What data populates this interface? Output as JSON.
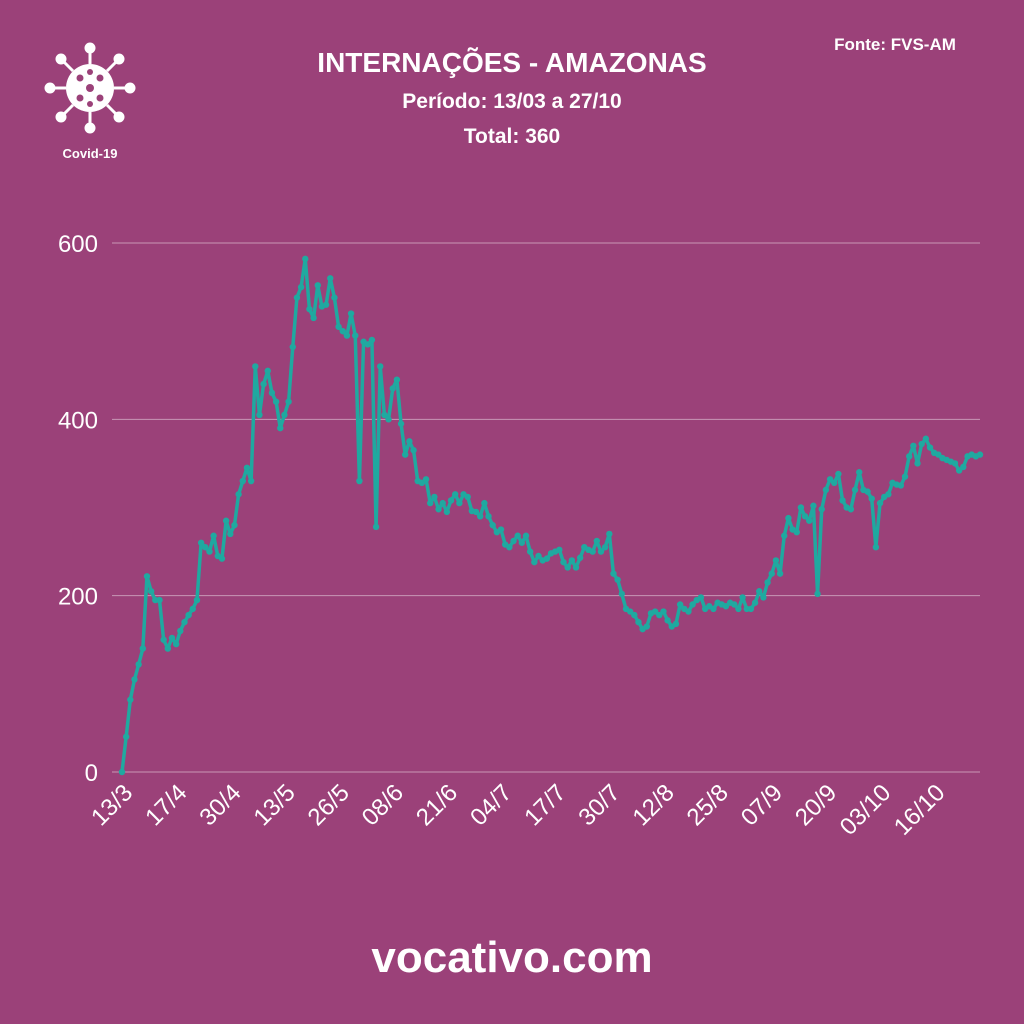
{
  "chart_data": {
    "type": "line",
    "title": "INTERNAÇÕES - AMAZONAS",
    "subtitle": "Período: 13/03 a 27/10",
    "total": "Total: 360",
    "source": "Fonte: FVS-AM",
    "badge": "Covid-19",
    "footer": "vocativo.com",
    "color": "#1fa9a0",
    "grid": true,
    "ylim": [
      0,
      600
    ],
    "yticks": [
      0,
      200,
      400,
      600
    ],
    "categories": [
      "13/3",
      null,
      null,
      null,
      null,
      null,
      null,
      null,
      null,
      null,
      null,
      null,
      null,
      "17/4",
      null,
      null,
      null,
      null,
      null,
      null,
      null,
      null,
      null,
      null,
      null,
      null,
      "30/4",
      null,
      null,
      null,
      null,
      null,
      null,
      null,
      null,
      null,
      null,
      null,
      null,
      "13/5",
      null,
      null,
      null,
      null,
      null,
      null,
      null,
      null,
      null,
      null,
      null,
      null,
      "26/5",
      null,
      null,
      null,
      null,
      null,
      null,
      null,
      null,
      null,
      null,
      null,
      null,
      "08/6",
      null,
      null,
      null,
      null,
      null,
      null,
      null,
      null,
      null,
      null,
      null,
      null,
      "21/6",
      null,
      null,
      null,
      null,
      null,
      null,
      null,
      null,
      null,
      null,
      null,
      null,
      "04/7",
      null,
      null,
      null,
      null,
      null,
      null,
      null,
      null,
      null,
      null,
      null,
      null,
      "17/7",
      null,
      null,
      null,
      null,
      null,
      null,
      null,
      null,
      null,
      null,
      null,
      null,
      "30/7",
      null,
      null,
      null,
      null,
      null,
      null,
      null,
      null,
      null,
      null,
      null,
      null,
      "12/8",
      null,
      null,
      null,
      null,
      null,
      null,
      null,
      null,
      null,
      null,
      null,
      null,
      "25/8",
      null,
      null,
      null,
      null,
      null,
      null,
      null,
      null,
      null,
      null,
      null,
      null,
      "07/9",
      null,
      null,
      null,
      null,
      null,
      null,
      null,
      null,
      null,
      null,
      null,
      null,
      "20/9",
      null,
      null,
      null,
      null,
      null,
      null,
      null,
      null,
      null,
      null,
      null,
      null,
      "03/10",
      null,
      null,
      null,
      null,
      null,
      null,
      null,
      null,
      null,
      null,
      null,
      null,
      "16/10",
      null,
      null,
      null,
      null,
      null,
      null,
      null,
      null,
      null,
      null,
      null
    ],
    "values": [
      0,
      40,
      82,
      105,
      122,
      140,
      222,
      205,
      195,
      195,
      150,
      140,
      152,
      145,
      160,
      170,
      178,
      185,
      195,
      260,
      255,
      250,
      268,
      245,
      242,
      285,
      270,
      280,
      315,
      330,
      345,
      330,
      460,
      405,
      440,
      455,
      430,
      420,
      390,
      405,
      420,
      482,
      538,
      550,
      582,
      525,
      515,
      552,
      528,
      530,
      560,
      538,
      505,
      500,
      495,
      520,
      495,
      330,
      488,
      485,
      490,
      278,
      460,
      405,
      400,
      435,
      445,
      395,
      360,
      375,
      365,
      330,
      328,
      332,
      305,
      312,
      298,
      305,
      295,
      308,
      315,
      305,
      315,
      312,
      296,
      295,
      290,
      305,
      290,
      280,
      272,
      275,
      258,
      255,
      262,
      268,
      260,
      268,
      250,
      238,
      245,
      240,
      242,
      248,
      250,
      252,
      238,
      232,
      240,
      232,
      243,
      255,
      252,
      250,
      262,
      250,
      255,
      270,
      225,
      218,
      202,
      185,
      182,
      178,
      170,
      162,
      165,
      180,
      182,
      178,
      182,
      172,
      165,
      168,
      190,
      185,
      182,
      190,
      195,
      198,
      185,
      188,
      185,
      192,
      190,
      188,
      192,
      190,
      185,
      198,
      185,
      185,
      192,
      205,
      198,
      215,
      225,
      240,
      225,
      268,
      288,
      275,
      272,
      300,
      290,
      285,
      302,
      202,
      298,
      320,
      332,
      328,
      338,
      308,
      300,
      298,
      320,
      340,
      320,
      318,
      310,
      255,
      305,
      312,
      315,
      328,
      326,
      325,
      335,
      358,
      370,
      350,
      372,
      378,
      368,
      362,
      360,
      356,
      354,
      352,
      350,
      342,
      346,
      358,
      360,
      358,
      360
    ]
  }
}
